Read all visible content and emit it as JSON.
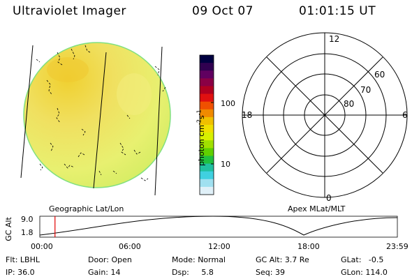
{
  "header": {
    "instrument": "Ultraviolet Imager",
    "date": "09 Oct 07",
    "time": "01:01:15 UT"
  },
  "colorbar": {
    "unit_label": "photon cm",
    "unit_sup1": "-2",
    "unit_mid": "s",
    "unit_sup2": "-1",
    "tick_high": "100",
    "tick_low": "10",
    "colors": [
      "#000040",
      "#300050",
      "#600060",
      "#8a0045",
      "#b00020",
      "#e01010",
      "#f05000",
      "#f08a00",
      "#f0c000",
      "#f0e000",
      "#d8f000",
      "#a0e000",
      "#60d000",
      "#20c040",
      "#20c0a0",
      "#40d0e0",
      "#a0e0f0",
      "#e0f0f8"
    ]
  },
  "polar_plot": {
    "mlt_labels": {
      "top": "12",
      "right": "6",
      "bottom": "0",
      "left": "18"
    },
    "lat_labels": [
      "60",
      "70",
      "80"
    ]
  },
  "image_labels": {
    "left_caption": "Geographic Lat/Lon",
    "right_caption": "Apex MLat/MLT"
  },
  "orbit_plot": {
    "ylabel": "GC Alt",
    "y_ticks": [
      "9.0",
      "1.8"
    ],
    "x_ticks": [
      "00:00",
      "06:00",
      "12:00",
      "18:00",
      "23:59"
    ],
    "current_time_marker_hours": 1.02
  },
  "info": {
    "filter_label": "Flt:",
    "filter_value": "LBHL",
    "ip_label": "IP:",
    "ip_value": "36.0",
    "door_label": "Door:",
    "door_value": "Open",
    "gain_label": "Gain:",
    "gain_value": "14",
    "mode_label": "Mode:",
    "mode_value": "Normal",
    "dsp_label": "Dsp:",
    "dsp_value": "5.8",
    "gcalt_label": "GC Alt:",
    "gcalt_value": "3.7 Re",
    "seq_label": "Seq:",
    "seq_value": "39",
    "glat_label": "GLat:",
    "glat_value": "-0.5",
    "glon_label": "GLon:",
    "glon_value": "114.0"
  }
}
